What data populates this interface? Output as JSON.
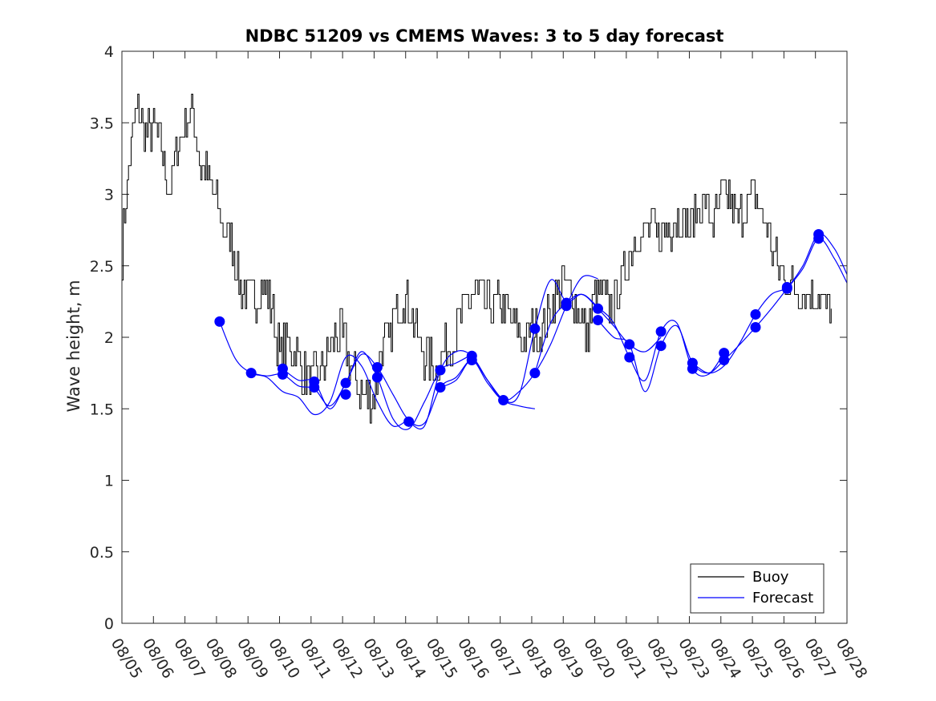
{
  "chart_data": {
    "type": "line",
    "title": "NDBC 51209 vs CMEMS Waves: 3 to 5 day forecast",
    "xlabel": "",
    "ylabel": "Wave height, m",
    "ylim": [
      0,
      4
    ],
    "yticks": [
      0,
      0.5,
      1,
      1.5,
      2,
      2.5,
      3,
      3.5,
      4
    ],
    "ytick_labels": [
      "0",
      "0.5",
      "1",
      "1.5",
      "2",
      "2.5",
      "3",
      "3.5",
      "4"
    ],
    "xlim": [
      0,
      23
    ],
    "xtick_labels": [
      "08/05",
      "08/06",
      "08/07",
      "08/08",
      "08/09",
      "08/10",
      "08/11",
      "08/12",
      "08/13",
      "08/14",
      "08/15",
      "08/16",
      "08/17",
      "08/18",
      "08/19",
      "08/20",
      "08/21",
      "08/22",
      "08/23",
      "08/24",
      "08/25",
      "08/26",
      "08/27",
      "08/28"
    ],
    "legend": {
      "position": "bottom-right",
      "entries": [
        "Buoy",
        "Forecast"
      ]
    },
    "colors": {
      "buoy": "#000000",
      "forecast": "#0000ff"
    },
    "buoy": {
      "name": "Buoy",
      "x": [
        0.0,
        0.25,
        0.5,
        0.75,
        1.0,
        1.25,
        1.5,
        1.75,
        2.0,
        2.25,
        2.5,
        2.75,
        3.0,
        3.25,
        3.5,
        3.75,
        4.0,
        4.25,
        4.5,
        4.75,
        5.0,
        5.25,
        5.5,
        5.75,
        6.0,
        6.25,
        6.5,
        6.75,
        7.0,
        7.25,
        7.5,
        7.75,
        8.0,
        8.25,
        8.5,
        8.75,
        9.0,
        9.25,
        9.5,
        9.75,
        10.0,
        10.25,
        10.5,
        10.75,
        11.0,
        11.25,
        11.5,
        11.75,
        12.0,
        12.25,
        12.5,
        12.75,
        13.0,
        13.25,
        13.5,
        13.75,
        14.0,
        14.25,
        14.5,
        14.75,
        15.0,
        15.25,
        15.5,
        15.75,
        16.0,
        16.25,
        16.5,
        16.75,
        17.0,
        17.25,
        17.5,
        17.75,
        18.0,
        18.25,
        18.5,
        18.75,
        19.0,
        19.25,
        19.5,
        19.75,
        20.0,
        20.25,
        20.5,
        20.75,
        21.0,
        21.25,
        21.5,
        21.75,
        22.0,
        22.25,
        22.5
      ],
      "y": [
        2.6,
        3.3,
        3.6,
        3.4,
        3.5,
        3.3,
        3.0,
        3.3,
        3.5,
        3.6,
        3.2,
        3.1,
        2.95,
        2.75,
        2.65,
        2.35,
        2.3,
        2.3,
        2.35,
        2.2,
        1.9,
        1.95,
        1.9,
        1.75,
        1.7,
        1.75,
        1.85,
        2.0,
        2.0,
        1.8,
        1.65,
        1.6,
        1.55,
        1.95,
        2.0,
        2.25,
        2.3,
        2.1,
        1.9,
        1.85,
        1.8,
        1.9,
        1.95,
        2.15,
        2.25,
        2.3,
        2.25,
        2.2,
        2.25,
        2.15,
        2.05,
        1.95,
        2.05,
        2.05,
        2.15,
        2.3,
        2.4,
        2.3,
        2.2,
        2.0,
        2.3,
        2.3,
        2.2,
        2.35,
        2.5,
        2.7,
        2.7,
        2.8,
        2.7,
        2.75,
        2.8,
        2.85,
        2.75,
        2.9,
        2.95,
        2.8,
        2.95,
        3.0,
        2.8,
        2.9,
        3.0,
        2.9,
        2.7,
        2.55,
        2.4,
        2.35,
        2.3,
        2.3,
        2.3,
        2.25,
        2.2
      ]
    },
    "forecast": {
      "name": "Forecast",
      "runs": [
        {
          "x": [
            3.1,
            3.6,
            4.1,
            4.6,
            5.1,
            5.6,
            6.1,
            6.6,
            7.1,
            7.6,
            8.1,
            8.6,
            9.1
          ],
          "y": [
            2.11,
            1.85,
            1.75,
            1.72,
            1.62,
            1.58,
            1.46,
            1.55,
            1.86,
            1.8,
            1.55,
            1.38,
            1.43
          ]
        },
        {
          "x": [
            4.1,
            4.6,
            5.1,
            5.6,
            6.1,
            6.6,
            7.1,
            7.6,
            8.1,
            8.6,
            9.1,
            9.6,
            10.1,
            10.6,
            11.1
          ],
          "y": [
            1.75,
            1.73,
            1.74,
            1.66,
            1.64,
            1.52,
            1.68,
            1.9,
            1.72,
            1.43,
            1.36,
            1.55,
            1.77,
            1.82,
            1.88
          ]
        },
        {
          "x": [
            5.1,
            5.6,
            6.1,
            6.6,
            7.1,
            7.6,
            8.1,
            8.6,
            9.1,
            9.6,
            10.1,
            10.6,
            11.1,
            11.6,
            12.1,
            12.6,
            13.1
          ],
          "y": [
            1.78,
            1.7,
            1.69,
            1.5,
            1.68,
            1.88,
            1.79,
            1.6,
            1.42,
            1.4,
            1.65,
            1.72,
            1.84,
            1.7,
            1.56,
            1.52,
            1.5
          ]
        },
        {
          "x": [
            9.1,
            9.6,
            10.1,
            10.6,
            11.1,
            11.6,
            12.1,
            12.6,
            13.1,
            13.6,
            14.1,
            14.6,
            15.1
          ],
          "y": [
            1.41,
            1.38,
            1.77,
            1.9,
            1.87,
            1.7,
            1.56,
            1.62,
            1.75,
            1.95,
            2.22,
            2.42,
            2.41
          ]
        },
        {
          "x": [
            10.1,
            10.6,
            11.1,
            11.6,
            12.1,
            12.6,
            13.1,
            13.6,
            14.1,
            14.6,
            15.1,
            15.6,
            16.1,
            16.6,
            17.1
          ],
          "y": [
            1.65,
            1.7,
            1.84,
            1.68,
            1.56,
            1.6,
            2.06,
            2.4,
            2.25,
            2.3,
            2.2,
            2.08,
            1.95,
            1.9,
            2.0
          ]
        },
        {
          "x": [
            13.1,
            13.6,
            14.1,
            14.6,
            15.1,
            15.6,
            16.1,
            16.6,
            17.1,
            17.6,
            18.1,
            18.6,
            19.1
          ],
          "y": [
            1.75,
            2.1,
            2.24,
            2.3,
            2.21,
            2.1,
            1.86,
            1.7,
            2.04,
            2.1,
            1.78,
            1.74,
            1.89
          ]
        },
        {
          "x": [
            15.1,
            15.6,
            16.1,
            16.6,
            17.1,
            17.6,
            18.1,
            18.6,
            19.1,
            19.6,
            20.1,
            20.6,
            21.1,
            21.6,
            22.1,
            22.6,
            23.0
          ],
          "y": [
            2.12,
            2.0,
            1.95,
            1.62,
            1.94,
            2.08,
            1.82,
            1.75,
            1.84,
            1.95,
            2.07,
            2.2,
            2.34,
            2.48,
            2.69,
            2.55,
            2.38
          ]
        },
        {
          "x": [
            18.1,
            18.6,
            19.1,
            19.6,
            20.1,
            20.6,
            21.1,
            21.6,
            22.1,
            22.6,
            23.0
          ],
          "y": [
            1.82,
            1.75,
            1.8,
            1.96,
            2.16,
            2.3,
            2.35,
            2.5,
            2.72,
            2.62,
            2.44
          ]
        }
      ],
      "markers": [
        {
          "x": 3.1,
          "y": 2.11
        },
        {
          "x": 4.1,
          "y": 1.75
        },
        {
          "x": 5.1,
          "y": 1.78
        },
        {
          "x": 5.1,
          "y": 1.74
        },
        {
          "x": 6.1,
          "y": 1.69
        },
        {
          "x": 6.1,
          "y": 1.65
        },
        {
          "x": 7.1,
          "y": 1.68
        },
        {
          "x": 7.1,
          "y": 1.6
        },
        {
          "x": 8.1,
          "y": 1.79
        },
        {
          "x": 8.1,
          "y": 1.72
        },
        {
          "x": 9.1,
          "y": 1.41
        },
        {
          "x": 10.1,
          "y": 1.77
        },
        {
          "x": 10.1,
          "y": 1.65
        },
        {
          "x": 11.1,
          "y": 1.87
        },
        {
          "x": 11.1,
          "y": 1.84
        },
        {
          "x": 12.1,
          "y": 1.56
        },
        {
          "x": 13.1,
          "y": 2.06
        },
        {
          "x": 13.1,
          "y": 1.75
        },
        {
          "x": 14.1,
          "y": 2.24
        },
        {
          "x": 14.1,
          "y": 2.22
        },
        {
          "x": 15.1,
          "y": 2.2
        },
        {
          "x": 15.1,
          "y": 2.12
        },
        {
          "x": 16.1,
          "y": 1.95
        },
        {
          "x": 16.1,
          "y": 1.86
        },
        {
          "x": 17.1,
          "y": 2.04
        },
        {
          "x": 17.1,
          "y": 1.94
        },
        {
          "x": 18.1,
          "y": 1.82
        },
        {
          "x": 18.1,
          "y": 1.78
        },
        {
          "x": 19.1,
          "y": 1.89
        },
        {
          "x": 19.1,
          "y": 1.84
        },
        {
          "x": 20.1,
          "y": 2.16
        },
        {
          "x": 20.1,
          "y": 2.07
        },
        {
          "x": 21.1,
          "y": 2.35
        },
        {
          "x": 21.1,
          "y": 2.34
        },
        {
          "x": 22.1,
          "y": 2.72
        },
        {
          "x": 22.1,
          "y": 2.69
        }
      ]
    }
  }
}
